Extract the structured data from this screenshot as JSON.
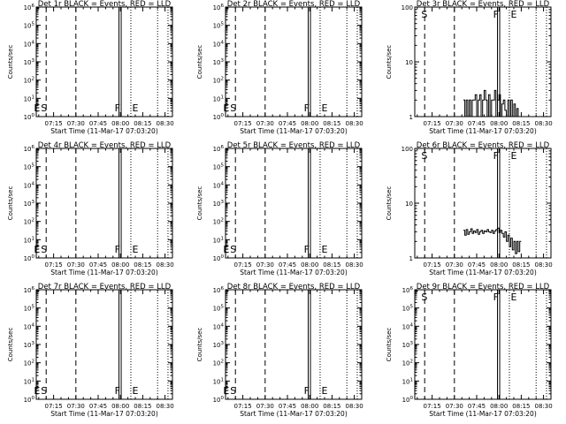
{
  "chart_data": [
    {
      "type": "line",
      "title": "Det 1r BLACK = Events, RED = LLD",
      "xlabel": "Start Time (11-Mar-17 07:03:20)",
      "ylabel": "Counts/sec",
      "x_ticks": [
        "07:15",
        "07:30",
        "07:45",
        "08:00",
        "08:15",
        "08:30"
      ],
      "y_scale": "log",
      "ylim": [
        1,
        1000000
      ],
      "y_ticks": [
        "10^0",
        "10^1",
        "10^2",
        "10^3",
        "10^4",
        "10^5",
        "10^6"
      ],
      "markers": [
        "E",
        "S",
        "F",
        "E"
      ],
      "series": []
    },
    {
      "type": "line",
      "title": "Det 2r BLACK = Events, RED = LLD",
      "xlabel": "Start Time (11-Mar-17 07:03:20)",
      "ylabel": "Counts/sec",
      "x_ticks": [
        "07:15",
        "07:30",
        "07:45",
        "08:00",
        "08:15",
        "08:30"
      ],
      "y_scale": "log",
      "ylim": [
        1,
        1000000
      ],
      "y_ticks": [
        "10^0",
        "10^1",
        "10^2",
        "10^3",
        "10^4",
        "10^5",
        "10^6"
      ],
      "markers": [
        "E",
        "S",
        "F",
        "E"
      ],
      "series": []
    },
    {
      "type": "line",
      "title": "Det 3r BLACK = Events, RED = LLD",
      "xlabel": "Start Time (11-Mar-17 07:03:20)",
      "ylabel": "Counts/sec",
      "x_ticks": [
        "07:15",
        "07:30",
        "07:45",
        "08:00",
        "08:15",
        "08:30"
      ],
      "y_scale": "log",
      "ylim": [
        1,
        100
      ],
      "y_ticks": [
        "1",
        "10",
        "100"
      ],
      "markers": [
        "S",
        "F",
        "E"
      ],
      "series": [
        {
          "color": "#000000",
          "x_minutes": [
            36,
            37,
            38,
            39,
            40,
            41,
            42,
            43,
            44,
            45,
            46,
            47,
            48,
            49,
            50,
            51,
            52,
            53,
            54,
            55,
            56,
            57,
            58,
            59,
            60,
            61,
            62,
            63,
            64,
            65,
            66,
            67,
            68,
            69,
            70,
            71,
            72,
            73,
            74
          ],
          "y": [
            2,
            1,
            2,
            1,
            2,
            1,
            2,
            2,
            2.5,
            1,
            2,
            2.5,
            1,
            2,
            3,
            2,
            1,
            2.5,
            1,
            2,
            2,
            3,
            1,
            2,
            2.5,
            1,
            1.7,
            2,
            1.3,
            1,
            2,
            1,
            2,
            1,
            1.7,
            1,
            1.4,
            1,
            1
          ]
        }
      ]
    },
    {
      "type": "line",
      "title": "Det 4r BLACK = Events, RED = LLD",
      "xlabel": "Start Time (11-Mar-17 07:03:20)",
      "ylabel": "Counts/sec",
      "x_ticks": [
        "07:15",
        "07:30",
        "07:45",
        "08:00",
        "08:15",
        "08:30"
      ],
      "y_scale": "log",
      "ylim": [
        1,
        1000000
      ],
      "y_ticks": [
        "10^0",
        "10^1",
        "10^2",
        "10^3",
        "10^4",
        "10^5",
        "10^6"
      ],
      "markers": [
        "E",
        "S",
        "F",
        "E"
      ],
      "series": []
    },
    {
      "type": "line",
      "title": "Det 5r BLACK = Events, RED = LLD",
      "xlabel": "Start Time (11-Mar-17 07:03:20)",
      "ylabel": "Counts/sec",
      "x_ticks": [
        "07:15",
        "07:30",
        "07:45",
        "08:00",
        "08:15",
        "08:30"
      ],
      "y_scale": "log",
      "ylim": [
        1,
        1000000
      ],
      "y_ticks": [
        "10^0",
        "10^1",
        "10^2",
        "10^3",
        "10^4",
        "10^5",
        "10^6"
      ],
      "markers": [
        "E",
        "S",
        "F",
        "E"
      ],
      "series": []
    },
    {
      "type": "line",
      "title": "Det 6r BLACK = Events, RED = LLD",
      "xlabel": "Start Time (11-Mar-17 07:03:20)",
      "ylabel": "Counts/sec",
      "x_ticks": [
        "07:15",
        "07:30",
        "07:45",
        "08:00",
        "08:15",
        "08:30"
      ],
      "y_scale": "log",
      "ylim": [
        1,
        100
      ],
      "y_ticks": [
        "1",
        "10",
        "100"
      ],
      "markers": [
        "S",
        "F",
        "E"
      ],
      "series": [
        {
          "color": "#000000",
          "x_minutes": [
            36,
            37,
            38,
            39,
            40,
            41,
            42,
            43,
            44,
            45,
            46,
            47,
            48,
            49,
            50,
            51,
            52,
            53,
            54,
            55,
            56,
            57,
            58,
            59,
            60,
            61,
            62,
            63,
            64,
            65,
            66,
            67,
            68,
            69,
            70,
            71,
            72,
            73,
            74
          ],
          "y": [
            3.2,
            2.6,
            3.3,
            2.7,
            3.0,
            3.4,
            2.8,
            3.1,
            2.9,
            3.3,
            2.7,
            3.0,
            3.2,
            2.8,
            3.1,
            3.0,
            3.3,
            3.0,
            2.9,
            3.2,
            2.8,
            3.1,
            3.3,
            3.5,
            2.9,
            3.2,
            2.8,
            2.4,
            3.0,
            2.0,
            2.6,
            1.6,
            2.3,
            1.4,
            2.0,
            1.2,
            2.0,
            1.3,
            2.0
          ]
        }
      ]
    },
    {
      "type": "line",
      "title": "Det 7r BLACK = Events, RED = LLD",
      "xlabel": "Start Time (11-Mar-17 07:03:20)",
      "ylabel": "Counts/sec",
      "x_ticks": [
        "07:15",
        "07:30",
        "07:45",
        "08:00",
        "08:15",
        "08:30"
      ],
      "y_scale": "log",
      "ylim": [
        1,
        1000000
      ],
      "y_ticks": [
        "10^0",
        "10^1",
        "10^2",
        "10^3",
        "10^4",
        "10^5",
        "10^6"
      ],
      "markers": [
        "E",
        "S",
        "F",
        "E"
      ],
      "series": []
    },
    {
      "type": "line",
      "title": "Det 8r BLACK = Events, RED = LLD",
      "xlabel": "Start Time (11-Mar-17 07:03:20)",
      "ylabel": "Counts/sec",
      "x_ticks": [
        "07:15",
        "07:30",
        "07:45",
        "08:00",
        "08:15",
        "08:30"
      ],
      "y_scale": "log",
      "ylim": [
        1,
        1000000
      ],
      "y_ticks": [
        "10^0",
        "10^1",
        "10^2",
        "10^3",
        "10^4",
        "10^5",
        "10^6"
      ],
      "markers": [
        "E",
        "S",
        "F",
        "E"
      ],
      "series": []
    },
    {
      "type": "line",
      "title": "Det 9r BLACK = Events, RED = LLD",
      "xlabel": "Start Time (11-Mar-17 07:03:20)",
      "ylabel": "Counts/sec",
      "x_ticks": [
        "07:15",
        "07:30",
        "07:45",
        "08:00",
        "08:15",
        "08:30"
      ],
      "y_scale": "log",
      "ylim": [
        1,
        1000000
      ],
      "y_ticks": [
        "10^0",
        "10^1",
        "10^2",
        "10^3",
        "10^4",
        "10^5",
        "10^6"
      ],
      "markers": [
        "S",
        "F",
        "E"
      ],
      "series": []
    }
  ]
}
